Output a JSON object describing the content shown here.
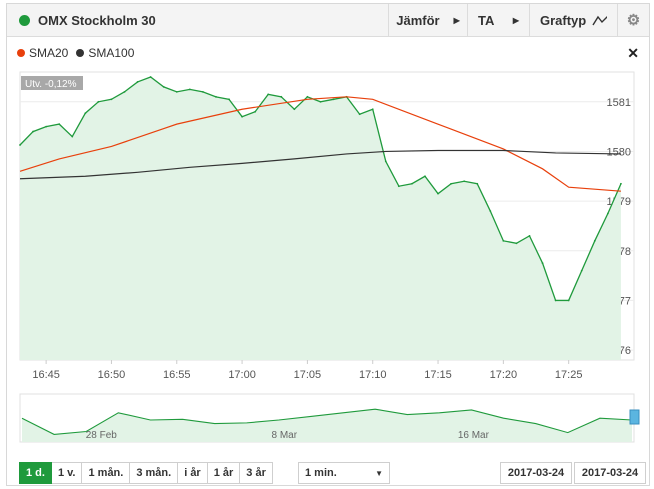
{
  "header": {
    "title": "OMX Stockholm 30",
    "compare_label": "Jämför",
    "ta_label": "TA",
    "graph_type_label": "Graftyp",
    "graph_type_icon": "line-chart-icon",
    "settings_icon": "gear-icon"
  },
  "legend": {
    "items": [
      {
        "label": "SMA20",
        "color": "#e8400c"
      },
      {
        "label": "SMA100",
        "color": "#333333"
      }
    ],
    "close_icon": "close-icon"
  },
  "chart_data": {
    "type": "area",
    "change_badge": "Utv. -0,12%",
    "x_ticks": [
      "16:45",
      "16:50",
      "16:55",
      "17:00",
      "17:05",
      "17:10",
      "17:15",
      "17:20",
      "17:25"
    ],
    "y_ticks": [
      "1576",
      "1577",
      "1578",
      "1579",
      "1580",
      "1581"
    ],
    "ylim": [
      1575.8,
      1581.6
    ],
    "xlim": [
      "16:43",
      "17:30"
    ],
    "series": [
      {
        "name": "",
        "color": "#1f9a3c",
        "points": [
          [
            "16:43",
            1580.13
          ],
          [
            "16:44",
            1580.4
          ],
          [
            "16:45",
            1580.5
          ],
          [
            "16:46",
            1580.55
          ],
          [
            "16:47",
            1580.3
          ],
          [
            "16:48",
            1580.77
          ],
          [
            "16:49",
            1581.0
          ],
          [
            "16:50",
            1581.05
          ],
          [
            "16:51",
            1581.2
          ],
          [
            "16:52",
            1581.4
          ],
          [
            "16:53",
            1581.5
          ],
          [
            "16:54",
            1581.3
          ],
          [
            "16:55",
            1581.2
          ],
          [
            "16:56",
            1581.25
          ],
          [
            "16:57",
            1581.2
          ],
          [
            "16:58",
            1581.1
          ],
          [
            "16:59",
            1581.05
          ],
          [
            "17:00",
            1580.7
          ],
          [
            "17:01",
            1580.8
          ],
          [
            "17:02",
            1581.15
          ],
          [
            "17:03",
            1581.1
          ],
          [
            "17:04",
            1580.85
          ],
          [
            "17:05",
            1581.1
          ],
          [
            "17:06",
            1581.0
          ],
          [
            "17:07",
            1581.05
          ],
          [
            "17:08",
            1581.1
          ],
          [
            "17:09",
            1580.75
          ],
          [
            "17:10",
            1580.85
          ],
          [
            "17:11",
            1579.8
          ],
          [
            "17:12",
            1579.3
          ],
          [
            "17:13",
            1579.35
          ],
          [
            "17:14",
            1579.5
          ],
          [
            "17:15",
            1579.15
          ],
          [
            "17:16",
            1579.35
          ],
          [
            "17:17",
            1579.4
          ],
          [
            "17:18",
            1579.35
          ],
          [
            "17:19",
            1578.8
          ],
          [
            "17:20",
            1578.2
          ],
          [
            "17:21",
            1578.15
          ],
          [
            "17:22",
            1578.3
          ],
          [
            "17:23",
            1577.75
          ],
          [
            "17:24",
            1577.0
          ],
          [
            "17:25",
            1577.0
          ],
          [
            "17:26",
            1577.6
          ],
          [
            "17:27",
            1578.2
          ],
          [
            "17:28",
            1578.75
          ],
          [
            "17:29",
            1579.35
          ]
        ]
      },
      {
        "name": "SMA20",
        "color": "#e8400c",
        "points": [
          [
            "16:43",
            1579.6
          ],
          [
            "16:46",
            1579.85
          ],
          [
            "16:50",
            1580.1
          ],
          [
            "16:55",
            1580.55
          ],
          [
            "17:00",
            1580.85
          ],
          [
            "17:05",
            1581.05
          ],
          [
            "17:08",
            1581.1
          ],
          [
            "17:10",
            1581.05
          ],
          [
            "17:15",
            1580.55
          ],
          [
            "17:20",
            1580.05
          ],
          [
            "17:23",
            1579.65
          ],
          [
            "17:25",
            1579.28
          ],
          [
            "17:29",
            1579.2
          ]
        ]
      },
      {
        "name": "SMA100",
        "color": "#333333",
        "points": [
          [
            "16:43",
            1579.45
          ],
          [
            "16:48",
            1579.5
          ],
          [
            "16:52",
            1579.58
          ],
          [
            "16:56",
            1579.68
          ],
          [
            "17:00",
            1579.76
          ],
          [
            "17:04",
            1579.85
          ],
          [
            "17:08",
            1579.95
          ],
          [
            "17:11",
            1580.0
          ],
          [
            "17:15",
            1580.02
          ],
          [
            "17:20",
            1580.02
          ],
          [
            "17:24",
            1579.97
          ],
          [
            "17:29",
            1579.95
          ]
        ]
      }
    ],
    "navigator": {
      "x_labels": [
        "28 Feb",
        "8 Mar",
        "16 Mar"
      ],
      "color": "#1f9a3c"
    }
  },
  "footer": {
    "ranges": [
      "1 d.",
      "1 v.",
      "1 mån.",
      "3 mån.",
      "i år",
      "1 år",
      "3 år"
    ],
    "active_range": "1 d.",
    "interval_value": "1 min.",
    "date_from": "2017-03-24",
    "date_to": "2017-03-24"
  }
}
